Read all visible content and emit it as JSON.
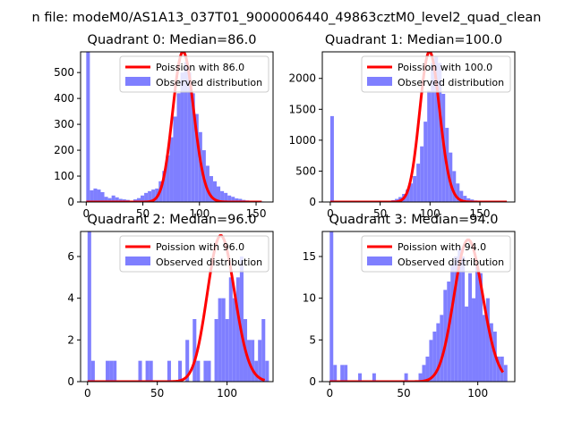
{
  "figure": {
    "suptitle": "n file: modeM0/AS1A13_037T01_9000006440_49863cztM0_level2_quad_clean",
    "colors": {
      "hist": "#7f7fff",
      "poisson": "#ff0000",
      "axis": "#000000"
    },
    "legend_position": "upper right"
  },
  "chart_data": [
    {
      "type": "bar",
      "title": "Quadrant 0: Median=86.0",
      "xlim": [
        -5,
        165
      ],
      "ylim": [
        0,
        580
      ],
      "xticks": [
        0,
        50,
        100,
        150
      ],
      "yticks": [
        0,
        100,
        200,
        300,
        400,
        500
      ],
      "legend": [
        "Poission with 86.0",
        "Observed distribution"
      ],
      "hist_bin_width": 3.2,
      "hist_x0": 0,
      "hist_values": [
        580,
        45,
        52,
        48,
        38,
        20,
        15,
        25,
        18,
        12,
        10,
        8,
        5,
        10,
        15,
        25,
        35,
        42,
        48,
        52,
        80,
        120,
        180,
        250,
        330,
        420,
        500,
        540,
        500,
        420,
        340,
        270,
        200,
        140,
        100,
        80,
        60,
        42,
        35,
        25,
        20,
        14,
        12,
        8,
        6,
        4,
        3,
        2,
        2,
        1
      ],
      "poisson": {
        "mean": 86.0,
        "peak": 580,
        "x_range": [
          0,
          155
        ]
      }
    },
    {
      "type": "bar",
      "title": "Quadrant 1: Median=100.0",
      "xlim": [
        -8,
        185
      ],
      "ylim": [
        0,
        2430
      ],
      "xticks": [
        0,
        50,
        100,
        150
      ],
      "yticks": [
        0,
        500,
        1000,
        1500,
        2000
      ],
      "legend": [
        "Poission with 100.0",
        "Observed distribution"
      ],
      "hist_bin_width": 3.6,
      "hist_x0": 0,
      "hist_values": [
        1390,
        5,
        5,
        3,
        2,
        2,
        1,
        2,
        3,
        3,
        5,
        5,
        8,
        10,
        12,
        15,
        20,
        30,
        50,
        80,
        130,
        200,
        300,
        420,
        620,
        900,
        1300,
        1800,
        2250,
        2350,
        2250,
        1750,
        1200,
        800,
        500,
        300,
        180,
        100,
        60,
        40,
        25,
        15,
        10,
        6,
        4,
        3,
        2,
        1,
        1,
        1
      ],
      "poisson": {
        "mean": 100.0,
        "peak": 2430,
        "x_range": [
          0,
          177
        ]
      }
    },
    {
      "type": "bar",
      "title": "Quadrant 2: Median=96.0",
      "xlim": [
        -5,
        133
      ],
      "ylim": [
        0,
        7.2
      ],
      "xticks": [
        0,
        50,
        100
      ],
      "yticks": [
        0,
        2,
        4,
        6
      ],
      "legend": [
        "Poission with 96.0",
        "Observed distribution"
      ],
      "hist_bin_width": 2.6,
      "hist_x0": 0,
      "hist_values": [
        7.2,
        1,
        0,
        0,
        0,
        1,
        1,
        1,
        0,
        0,
        0,
        0,
        0,
        0,
        1,
        0,
        1,
        1,
        0,
        0,
        0,
        0,
        1,
        0,
        0,
        1,
        0,
        2,
        0,
        3,
        1,
        0,
        1,
        1,
        0,
        3,
        4,
        4,
        3,
        5,
        4,
        5,
        6,
        3,
        2,
        2,
        1,
        2,
        3,
        1
      ],
      "poisson": {
        "mean": 96.0,
        "peak": 7.0,
        "x_range": [
          0,
          127
        ]
      }
    },
    {
      "type": "bar",
      "title": "Quadrant 3: Median=94.0",
      "xlim": [
        -5,
        125
      ],
      "ylim": [
        0,
        18
      ],
      "xticks": [
        0,
        50,
        100
      ],
      "yticks": [
        0,
        5,
        10,
        15
      ],
      "legend": [
        "Poission with 94.0",
        "Observed distribution"
      ],
      "hist_bin_width": 2.4,
      "hist_x0": 0,
      "hist_values": [
        18,
        2,
        0,
        2,
        2,
        0,
        0,
        0,
        1,
        0,
        0,
        0,
        1,
        0,
        0,
        0,
        0,
        0,
        0,
        0,
        0,
        1,
        0,
        0,
        0,
        1,
        2,
        3,
        5,
        6,
        7,
        8,
        11,
        12,
        14,
        15,
        16,
        15,
        9,
        13,
        10,
        14,
        13,
        8,
        10,
        7,
        6,
        3,
        3,
        2
      ],
      "poisson": {
        "mean": 94.0,
        "peak": 17.0,
        "x_range": [
          0,
          117
        ]
      }
    }
  ]
}
